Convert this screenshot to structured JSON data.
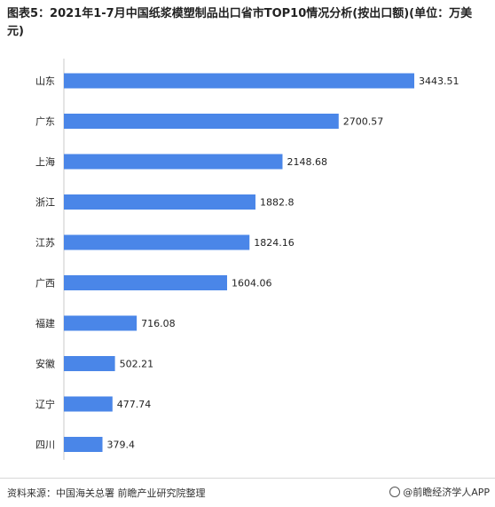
{
  "title": "图表5：2021年1-7月中国纸浆模塑制品出口省市TOP10情况分析(按出口额)(单位：万美元)",
  "source": "资料来源：中国海关总署 前瞻产业研究院整理",
  "brand": "@前瞻经济学人APP",
  "chart_data": {
    "type": "bar",
    "orientation": "horizontal",
    "categories": [
      "山东",
      "广东",
      "上海",
      "浙江",
      "江苏",
      "广西",
      "福建",
      "安徽",
      "辽宁",
      "四川"
    ],
    "values": [
      3443.51,
      2700.57,
      2148.68,
      1882.8,
      1824.16,
      1604.06,
      716.08,
      502.21,
      477.74,
      379.4
    ],
    "value_labels": [
      "3443.51",
      "2700.57",
      "2148.68",
      "1882.8",
      "1824.16",
      "1604.06",
      "716.08",
      "502.21",
      "477.74",
      "379.4"
    ],
    "xlim": [
      0,
      3443.51
    ],
    "bar_color": "#4a86e8",
    "grid": false,
    "legend": false
  }
}
